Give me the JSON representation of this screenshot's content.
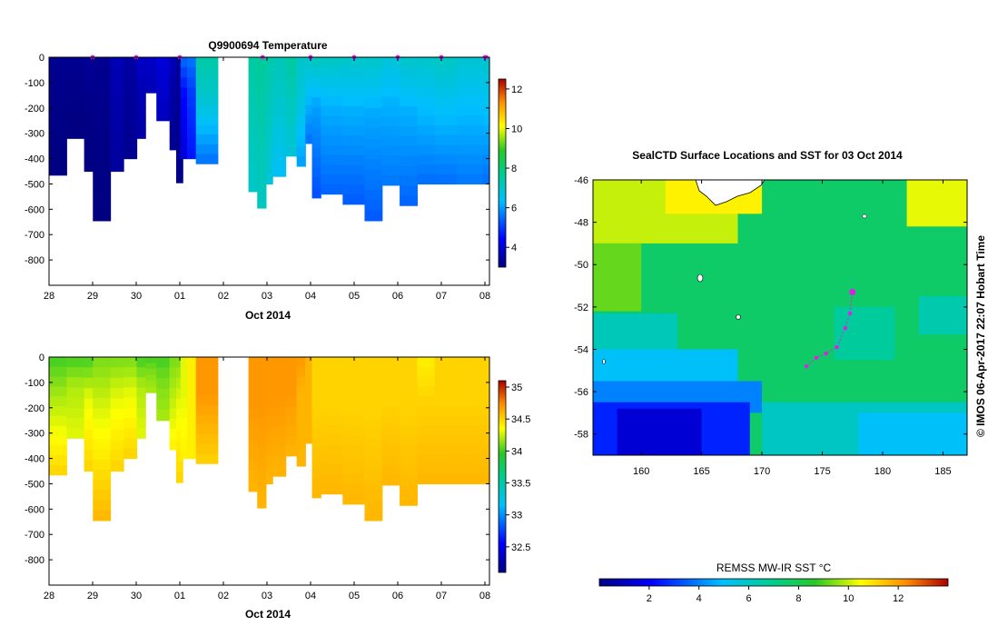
{
  "chart_data": [
    {
      "type": "heatmap",
      "title": "Q9900694  Temperature",
      "xlabel": "Oct 2014",
      "x_tick_labels": [
        "28",
        "29",
        "30",
        "01",
        "02",
        "03",
        "04",
        "05",
        "06",
        "07",
        "08"
      ],
      "y_tick_labels": [
        "0",
        "-100",
        "-200",
        "-300",
        "-400",
        "-500",
        "-600",
        "-700",
        "-800"
      ],
      "ylim": [
        -900,
        0
      ],
      "colorbar": {
        "ticks": [
          "4",
          "6",
          "8",
          "10",
          "12"
        ],
        "range": [
          3,
          12.5
        ],
        "colormap": "jet"
      },
      "surface_marker_color": "#e020e0",
      "profiles": [
        {
          "x": 0.0,
          "w": 0.4,
          "depth": 465,
          "s": 3.2,
          "m": 3.1,
          "d": 3.0
        },
        {
          "x": 0.4,
          "w": 0.4,
          "depth": 320,
          "s": 3.2,
          "m": 3.1,
          "d": 3.0
        },
        {
          "x": 0.8,
          "w": 0.2,
          "depth": 450,
          "s": 3.3,
          "m": 3.1,
          "d": 3.0
        },
        {
          "x": 1.0,
          "w": 0.4,
          "depth": 645,
          "s": 3.2,
          "m": 3.1,
          "d": 3.0
        },
        {
          "x": 1.4,
          "w": 0.3,
          "depth": 450,
          "s": 3.6,
          "m": 3.5,
          "d": 3.3
        },
        {
          "x": 1.7,
          "w": 0.3,
          "depth": 400,
          "s": 3.4,
          "m": 3.3,
          "d": 3.2
        },
        {
          "x": 2.0,
          "w": 0.2,
          "depth": 320,
          "s": 3.8,
          "m": 3.6,
          "d": 3.4
        },
        {
          "x": 2.2,
          "w": 0.25,
          "depth": 140,
          "s": 3.8,
          "m": 3.7,
          "d": 3.6
        },
        {
          "x": 2.45,
          "w": 0.3,
          "depth": 250,
          "s": 4.0,
          "m": 3.9,
          "d": 3.7
        },
        {
          "x": 2.75,
          "w": 0.25,
          "depth": 365,
          "s": 3.6,
          "m": 3.4,
          "d": 3.2
        },
        {
          "x": 2.9,
          "w": 0.15,
          "depth": 495,
          "s": 3.3,
          "m": 3.2,
          "d": 3.1
        },
        {
          "x": 3.0,
          "w": 0.15,
          "depth": 400,
          "s": 5.5,
          "m": 4.5,
          "d": 4.0
        },
        {
          "x": 3.15,
          "w": 0.2,
          "depth": 400,
          "s": 5.6,
          "m": 5.0,
          "d": 4.6
        },
        {
          "x": 3.35,
          "w": 0.5,
          "depth": 420,
          "s": 7.4,
          "m": 7.0,
          "d": 5.5
        },
        {
          "x": 4.55,
          "w": 0.2,
          "depth": 530,
          "s": 7.5,
          "m": 7.3,
          "d": 7.0
        },
        {
          "x": 4.75,
          "w": 0.2,
          "depth": 595,
          "s": 7.6,
          "m": 7.4,
          "d": 7.1
        },
        {
          "x": 4.95,
          "w": 0.15,
          "depth": 500,
          "s": 7.4,
          "m": 7.2,
          "d": 6.8
        },
        {
          "x": 5.1,
          "w": 0.3,
          "depth": 470,
          "s": 7.2,
          "m": 7.0,
          "d": 6.4
        },
        {
          "x": 5.4,
          "w": 0.25,
          "depth": 390,
          "s": 7.5,
          "m": 7.2,
          "d": 6.8
        },
        {
          "x": 5.65,
          "w": 0.2,
          "depth": 430,
          "s": 7.0,
          "m": 6.8,
          "d": 6.0
        },
        {
          "x": 5.85,
          "w": 0.15,
          "depth": 340,
          "s": 7.0,
          "m": 6.5,
          "d": 5.5
        },
        {
          "x": 6.0,
          "w": 0.2,
          "depth": 555,
          "s": 7.2,
          "m": 6.0,
          "d": 5.2
        },
        {
          "x": 6.2,
          "w": 0.5,
          "depth": 540,
          "s": 7.1,
          "m": 6.2,
          "d": 5.4
        },
        {
          "x": 6.7,
          "w": 0.5,
          "depth": 580,
          "s": 7.0,
          "m": 6.2,
          "d": 5.3
        },
        {
          "x": 7.2,
          "w": 0.4,
          "depth": 645,
          "s": 7.0,
          "m": 6.1,
          "d": 5.3
        },
        {
          "x": 7.6,
          "w": 0.4,
          "depth": 505,
          "s": 6.8,
          "m": 6.2,
          "d": 5.6
        },
        {
          "x": 8.0,
          "w": 0.4,
          "depth": 585,
          "s": 7.0,
          "m": 6.2,
          "d": 5.4
        },
        {
          "x": 8.4,
          "w": 0.4,
          "depth": 500,
          "s": 7.0,
          "m": 6.4,
          "d": 5.5
        },
        {
          "x": 8.8,
          "w": 0.5,
          "depth": 500,
          "s": 7.1,
          "m": 6.5,
          "d": 5.5
        },
        {
          "x": 9.3,
          "w": 0.6,
          "depth": 500,
          "s": 6.9,
          "m": 6.4,
          "d": 5.6
        },
        {
          "x": 9.9,
          "w": 0.7,
          "depth": 500,
          "s": 7.0,
          "m": 6.5,
          "d": 5.5
        }
      ],
      "surface_markers": [
        1,
        2,
        3,
        4.9,
        6,
        7,
        8,
        9,
        10,
        10.03
      ]
    },
    {
      "type": "heatmap",
      "title": "",
      "xlabel": "Oct 2014",
      "x_tick_labels": [
        "28",
        "29",
        "30",
        "01",
        "02",
        "03",
        "04",
        "05",
        "06",
        "07",
        "08"
      ],
      "y_tick_labels": [
        "0",
        "-100",
        "-200",
        "-300",
        "-400",
        "-500",
        "-600",
        "-700",
        "-800"
      ],
      "ylim": [
        -900,
        0
      ],
      "colorbar": {
        "ticks": [
          "32.5",
          "33",
          "33.5",
          "34",
          "34.5",
          "35"
        ],
        "range": [
          32.1,
          35.1
        ],
        "colormap": "jet"
      },
      "profiles": [
        {
          "x": 0.0,
          "w": 0.4,
          "depth": 465,
          "s": 34.0,
          "m": 34.2,
          "d": 34.5
        },
        {
          "x": 0.4,
          "w": 0.4,
          "depth": 320,
          "s": 34.0,
          "m": 34.2,
          "d": 34.3
        },
        {
          "x": 0.8,
          "w": 0.2,
          "depth": 450,
          "s": 34.0,
          "m": 34.3,
          "d": 34.5
        },
        {
          "x": 1.0,
          "w": 0.4,
          "depth": 645,
          "s": 34.1,
          "m": 34.3,
          "d": 34.6
        },
        {
          "x": 1.4,
          "w": 0.3,
          "depth": 450,
          "s": 34.1,
          "m": 34.3,
          "d": 34.5
        },
        {
          "x": 1.7,
          "w": 0.3,
          "depth": 400,
          "s": 34.1,
          "m": 34.3,
          "d": 34.5
        },
        {
          "x": 2.0,
          "w": 0.2,
          "depth": 320,
          "s": 34.0,
          "m": 34.2,
          "d": 34.3
        },
        {
          "x": 2.2,
          "w": 0.25,
          "depth": 140,
          "s": 34.0,
          "m": 34.1,
          "d": 34.2
        },
        {
          "x": 2.45,
          "w": 0.3,
          "depth": 250,
          "s": 34.0,
          "m": 34.1,
          "d": 34.2
        },
        {
          "x": 2.75,
          "w": 0.25,
          "depth": 365,
          "s": 34.1,
          "m": 34.2,
          "d": 34.4
        },
        {
          "x": 2.9,
          "w": 0.15,
          "depth": 495,
          "s": 34.1,
          "m": 34.3,
          "d": 34.5
        },
        {
          "x": 3.0,
          "w": 0.15,
          "depth": 400,
          "s": 34.3,
          "m": 34.3,
          "d": 34.4
        },
        {
          "x": 3.15,
          "w": 0.2,
          "depth": 400,
          "s": 34.4,
          "m": 34.4,
          "d": 34.4
        },
        {
          "x": 3.35,
          "w": 0.5,
          "depth": 420,
          "s": 34.7,
          "m": 34.7,
          "d": 34.5
        },
        {
          "x": 4.55,
          "w": 0.2,
          "depth": 530,
          "s": 34.7,
          "m": 34.7,
          "d": 34.6
        },
        {
          "x": 4.75,
          "w": 0.2,
          "depth": 595,
          "s": 34.7,
          "m": 34.7,
          "d": 34.6
        },
        {
          "x": 4.95,
          "w": 0.15,
          "depth": 500,
          "s": 34.7,
          "m": 34.7,
          "d": 34.6
        },
        {
          "x": 5.1,
          "w": 0.3,
          "depth": 470,
          "s": 34.7,
          "m": 34.7,
          "d": 34.6
        },
        {
          "x": 5.4,
          "w": 0.25,
          "depth": 390,
          "s": 34.7,
          "m": 34.7,
          "d": 34.6
        },
        {
          "x": 5.65,
          "w": 0.2,
          "depth": 430,
          "s": 34.7,
          "m": 34.6,
          "d": 34.6
        },
        {
          "x": 5.85,
          "w": 0.15,
          "depth": 340,
          "s": 34.6,
          "m": 34.6,
          "d": 34.6
        },
        {
          "x": 6.0,
          "w": 0.2,
          "depth": 555,
          "s": 34.5,
          "m": 34.5,
          "d": 34.6
        },
        {
          "x": 6.2,
          "w": 0.5,
          "depth": 540,
          "s": 34.5,
          "m": 34.5,
          "d": 34.6
        },
        {
          "x": 6.7,
          "w": 0.5,
          "depth": 580,
          "s": 34.5,
          "m": 34.5,
          "d": 34.6
        },
        {
          "x": 7.2,
          "w": 0.4,
          "depth": 645,
          "s": 34.5,
          "m": 34.5,
          "d": 34.6
        },
        {
          "x": 7.6,
          "w": 0.4,
          "depth": 505,
          "s": 34.5,
          "m": 34.5,
          "d": 34.6
        },
        {
          "x": 8.0,
          "w": 0.4,
          "depth": 585,
          "s": 34.5,
          "m": 34.5,
          "d": 34.6
        },
        {
          "x": 8.4,
          "w": 0.4,
          "depth": 500,
          "s": 34.4,
          "m": 34.5,
          "d": 34.6
        },
        {
          "x": 8.8,
          "w": 0.5,
          "depth": 500,
          "s": 34.5,
          "m": 34.5,
          "d": 34.6
        },
        {
          "x": 9.3,
          "w": 0.6,
          "depth": 500,
          "s": 34.5,
          "m": 34.5,
          "d": 34.6
        },
        {
          "x": 9.9,
          "w": 0.7,
          "depth": 500,
          "s": 34.5,
          "m": 34.5,
          "d": 34.6
        }
      ]
    },
    {
      "type": "heatmap",
      "title": "SealCTD Surface Locations and SST for 03 Oct 2014",
      "x_tick_labels": [
        "160",
        "165",
        "170",
        "175",
        "180",
        "185"
      ],
      "x_ticks": [
        160,
        165,
        170,
        175,
        180,
        185
      ],
      "xlim": [
        156,
        187
      ],
      "y_tick_labels": [
        "-46",
        "-48",
        "-50",
        "-52",
        "-54",
        "-56",
        "-58"
      ],
      "y_ticks": [
        -46,
        -48,
        -50,
        -52,
        -54,
        -56,
        -58
      ],
      "ylim": [
        -59,
        -46
      ],
      "colorbar": {
        "label": "REMSS MW-IR SST °C",
        "ticks": [
          "2",
          "4",
          "6",
          "8",
          "10",
          "12"
        ],
        "range": [
          0,
          14
        ],
        "colormap": "jet"
      },
      "track_color": "#e020e0",
      "track": [
        [
          173.7,
          -54.8
        ],
        [
          174.5,
          -54.4
        ],
        [
          175.3,
          -54.2
        ],
        [
          176.2,
          -53.9
        ],
        [
          176.9,
          -53.0
        ],
        [
          177.3,
          -52.3
        ],
        [
          177.5,
          -51.3
        ]
      ],
      "sst_regions": [
        {
          "lon": 156,
          "lat": -46,
          "w": 31,
          "h": 13,
          "t": 7.6
        },
        {
          "lon": 156,
          "lat": -46,
          "w": 12,
          "h": 3.0,
          "t": 10.0
        },
        {
          "lon": 161,
          "lat": -46,
          "w": 9,
          "h": 1.6,
          "t": 10.7
        },
        {
          "lon": 156,
          "lat": -46,
          "w": 6,
          "h": 2.0,
          "t": 10.0
        },
        {
          "lon": 182,
          "lat": -46,
          "w": 5,
          "h": 2.2,
          "t": 10.3
        },
        {
          "lon": 156,
          "lat": -49,
          "w": 4,
          "h": 3.2,
          "t": 9.2
        },
        {
          "lon": 156,
          "lat": -52.3,
          "w": 7,
          "h": 1.8,
          "t": 6.2
        },
        {
          "lon": 156,
          "lat": -54,
          "w": 12,
          "h": 1.8,
          "t": 5.0
        },
        {
          "lon": 156,
          "lat": -55.5,
          "w": 14,
          "h": 1.5,
          "t": 4.0
        },
        {
          "lon": 156,
          "lat": -56.5,
          "w": 13,
          "h": 2.5,
          "t": 2.6
        },
        {
          "lon": 158,
          "lat": -56.8,
          "w": 7,
          "h": 2.2,
          "t": 1.4
        },
        {
          "lon": 170,
          "lat": -56.5,
          "w": 17,
          "h": 2.5,
          "t": 6.0
        },
        {
          "lon": 178,
          "lat": -57,
          "w": 9,
          "h": 2.0,
          "t": 5.0
        },
        {
          "lon": 183,
          "lat": -51.5,
          "w": 4,
          "h": 1.8,
          "t": 6.4
        },
        {
          "lon": 176,
          "lat": -52,
          "w": 5,
          "h": 2.5,
          "t": 6.7
        }
      ],
      "side_label": "© IMOS 06-Apr-2017 22:07 Hobart Time"
    }
  ]
}
